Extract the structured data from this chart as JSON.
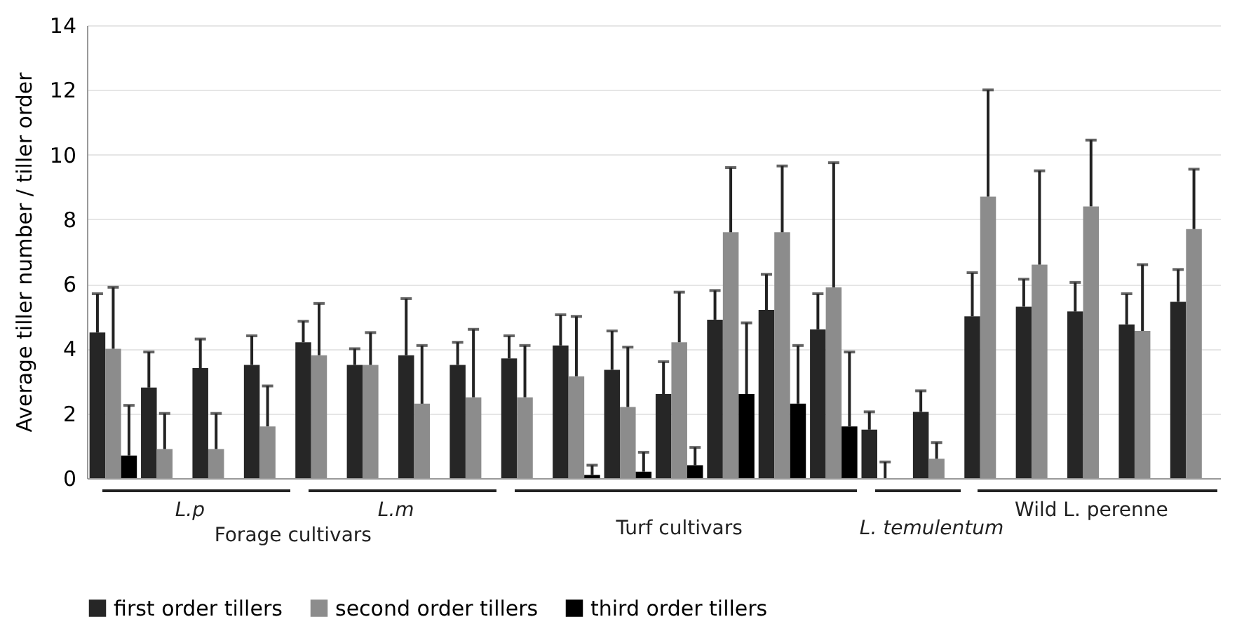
{
  "chart_data": {
    "type": "bar",
    "ylabel": "Average tiller number / tiller order",
    "categories": [
      null,
      null,
      null,
      null,
      null,
      null,
      null,
      null,
      null,
      null,
      null,
      null,
      null,
      null,
      null,
      null,
      null,
      null,
      null,
      null,
      null,
      null
    ],
    "series": [
      {
        "name": "first order tillers",
        "color": "#262626",
        "values": [
          4.5,
          2.8,
          3.4,
          3.5,
          4.2,
          3.5,
          3.8,
          3.5,
          3.7,
          4.1,
          3.35,
          2.6,
          4.9,
          5.2,
          4.6,
          1.5,
          2.05,
          5.0,
          5.3,
          5.15,
          4.75,
          5.45
        ],
        "errors": [
          [
            4.5,
            5.7
          ],
          [
            2.8,
            3.9
          ],
          [
            3.4,
            4.3
          ],
          [
            3.5,
            4.4
          ],
          [
            4.2,
            4.85
          ],
          [
            3.5,
            4.0
          ],
          [
            3.8,
            5.55
          ],
          [
            3.5,
            4.2
          ],
          [
            3.7,
            4.4
          ],
          [
            4.1,
            5.05
          ],
          [
            3.35,
            4.55
          ],
          [
            2.6,
            3.6
          ],
          [
            4.9,
            5.8
          ],
          [
            5.2,
            6.3
          ],
          [
            4.6,
            5.7
          ],
          [
            1.5,
            2.05
          ],
          [
            2.05,
            2.7
          ],
          [
            5.0,
            6.35
          ],
          [
            5.3,
            6.15
          ],
          [
            5.15,
            6.05
          ],
          [
            4.75,
            5.7
          ],
          [
            5.45,
            6.45
          ]
        ]
      },
      {
        "name": "second order tillers",
        "color": "#8c8c8c",
        "values": [
          4.0,
          0.9,
          0.9,
          1.6,
          3.8,
          3.5,
          2.3,
          2.5,
          2.5,
          3.15,
          2.2,
          4.2,
          7.6,
          7.6,
          5.9,
          0,
          0.6,
          8.7,
          6.6,
          8.4,
          4.55,
          7.7
        ],
        "errors": [
          [
            4.0,
            5.9
          ],
          [
            0.9,
            2.0
          ],
          [
            0.9,
            2.0
          ],
          [
            1.6,
            2.85
          ],
          [
            3.8,
            5.4
          ],
          [
            3.5,
            4.5
          ],
          [
            2.3,
            4.1
          ],
          [
            2.5,
            4.6
          ],
          [
            2.5,
            4.1
          ],
          [
            3.15,
            5.0
          ],
          [
            2.2,
            4.05
          ],
          [
            4.2,
            5.75
          ],
          [
            7.6,
            9.6
          ],
          [
            7.6,
            9.65
          ],
          [
            5.9,
            9.75
          ],
          [
            0,
            0.5
          ],
          [
            0.6,
            1.1
          ],
          [
            8.7,
            12.0
          ],
          [
            6.6,
            9.5
          ],
          [
            8.4,
            10.45
          ],
          [
            4.55,
            6.6
          ],
          [
            7.7,
            9.55
          ]
        ]
      },
      {
        "name": "third order tillers",
        "color": "#000000",
        "values": [
          0.7,
          null,
          null,
          null,
          null,
          null,
          null,
          null,
          null,
          0.1,
          0.2,
          0.4,
          2.6,
          2.3,
          1.6,
          null,
          null,
          null,
          null,
          null,
          null,
          null
        ],
        "errors": [
          [
            0.7,
            2.25
          ],
          null,
          null,
          null,
          null,
          null,
          null,
          null,
          null,
          [
            0.1,
            0.4
          ],
          [
            0.2,
            0.8
          ],
          [
            0.4,
            0.95
          ],
          [
            2.6,
            4.8
          ],
          [
            2.3,
            4.1
          ],
          [
            1.6,
            3.9
          ],
          null,
          null,
          null,
          null,
          null,
          null,
          null
        ]
      }
    ],
    "ylim": [
      0,
      14
    ],
    "yticks": [
      0,
      2,
      4,
      6,
      8,
      10,
      12,
      14
    ],
    "grid": "y",
    "legend": "bottom",
    "tick_labels": "y",
    "annotations": [
      "L.p",
      "L.m",
      "Forage cultivars",
      "Turf cultivars",
      "L. temulentum",
      "Wild L. perenne"
    ]
  }
}
